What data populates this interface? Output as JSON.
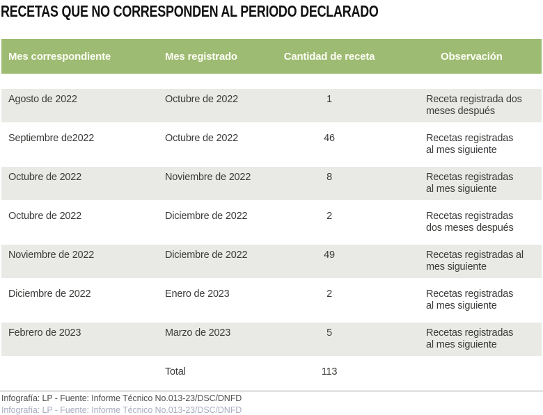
{
  "title": "RECETAS QUE NO CORRESPONDEN AL PERIODO DECLARADO",
  "table": {
    "columns": [
      "Mes correspondiente",
      "Mes registrado",
      "Cantidad de receta",
      "Observación"
    ],
    "rows": [
      {
        "mes_correspondiente": "Agosto de 2022",
        "mes_registrado": "Octubre de 2022",
        "cantidad": "1",
        "observacion": "Receta registrada dos\nmeses después"
      },
      {
        "mes_correspondiente": "Septiembre de2022",
        "mes_registrado": "Octubre de 2022",
        "cantidad": "46",
        "observacion": "Recetas registradas\nal mes siguiente"
      },
      {
        "mes_correspondiente": "Octubre de 2022",
        "mes_registrado": "Noviembre de 2022",
        "cantidad": "8",
        "observacion": "Recetas registradas\nal mes siguiente"
      },
      {
        "mes_correspondiente": "Octubre de 2022",
        "mes_registrado": "Diciembre de 2022",
        "cantidad": "2",
        "observacion": "Recetas registradas\ndos meses después"
      },
      {
        "mes_correspondiente": "Noviembre de 2022",
        "mes_registrado": "Diciembre de 2022",
        "cantidad": "49",
        "observacion": "Recetas registradas al\nmes siguiente"
      },
      {
        "mes_correspondiente": "Diciembre de 2022",
        "mes_registrado": "Enero de 2023",
        "cantidad": "2",
        "observacion": "Recetas registradas\nal mes siguiente"
      },
      {
        "mes_correspondiente": "Febrero de 2023",
        "mes_registrado": "Marzo de 2023",
        "cantidad": "5",
        "observacion": "Recetas registradas\nal mes siguiente"
      }
    ],
    "total_label": "Total",
    "total_value": "113"
  },
  "footer": {
    "credit": "Infografía: LP - Fuente: Informe Técnico No.013-23/DSC/DNFD"
  },
  "colors": {
    "header_bg": "#9dbb72",
    "row_alt_bg": "#e9e9e6",
    "header_text": "#fcfdf4",
    "body_text": "#3b3b39",
    "title_text": "#121212"
  },
  "chart_data": {
    "type": "table",
    "title": "RECETAS QUE NO CORRESPONDEN AL PERIODO DECLARADO",
    "columns": [
      "Mes correspondiente",
      "Mes registrado",
      "Cantidad de receta",
      "Observación"
    ],
    "rows": [
      [
        "Agosto de 2022",
        "Octubre de 2022",
        1,
        "Receta registrada dos meses después"
      ],
      [
        "Septiembre de2022",
        "Octubre de 2022",
        46,
        "Recetas registradas al mes siguiente"
      ],
      [
        "Octubre de 2022",
        "Noviembre de 2022",
        8,
        "Recetas registradas al mes siguiente"
      ],
      [
        "Octubre de 2022",
        "Diciembre de 2022",
        2,
        "Recetas registradas dos meses después"
      ],
      [
        "Noviembre de 2022",
        "Diciembre de 2022",
        49,
        "Recetas registradas al mes siguiente"
      ],
      [
        "Diciembre de 2022",
        "Enero de 2023",
        2,
        "Recetas registradas al mes siguiente"
      ],
      [
        "Febrero de 2023",
        "Marzo de 2023",
        5,
        "Recetas registradas al mes siguiente"
      ]
    ],
    "total": {
      "label": "Total",
      "cantidad": 113
    },
    "source": "Infografía: LP - Fuente: Informe Técnico No.013-23/DSC/DNFD"
  }
}
